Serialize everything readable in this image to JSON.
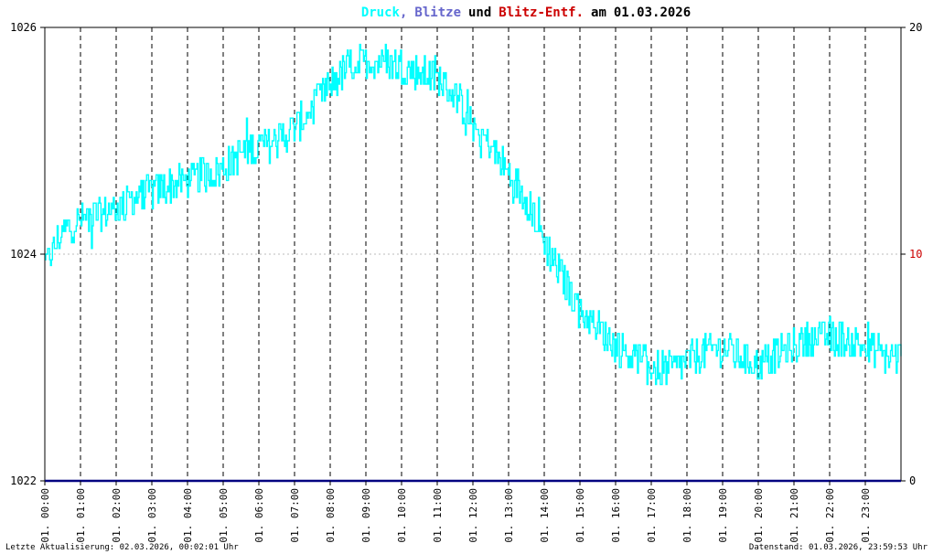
{
  "title": {
    "part1": "Druck",
    "sep1": ",",
    "part2": "Blitze",
    "word_und": "und",
    "part3": "Blitz-Entf.",
    "word_am": "am",
    "date": "01.03.2026"
  },
  "colors": {
    "pressure": "#00ffff",
    "blitze": "#6666cc",
    "blitz_entf": "#cc0000",
    "text": "#000000",
    "baseline": "#000080"
  },
  "footer": {
    "left": "Letzte Aktualisierung: 02.03.2026, 00:02:01 Uhr",
    "right": "Datenstand: 01.03.2026, 23:59:53 Uhr"
  },
  "chart_data": {
    "type": "line",
    "title": "Druck, Blitze und Blitz-Entf. am 01.03.2026",
    "ylim_left": [
      1022,
      1026
    ],
    "ylim_right": [
      0,
      20
    ],
    "left_ticks": [
      "1022",
      "1024",
      "1026"
    ],
    "right_ticks": [
      "0",
      "10",
      "20"
    ],
    "x_ticks": [
      "01. 00:00",
      "01. 01:00",
      "01. 02:00",
      "01. 03:00",
      "01. 04:00",
      "01. 05:00",
      "01. 06:00",
      "01. 07:00",
      "01. 08:00",
      "01. 09:00",
      "01. 10:00",
      "01. 11:00",
      "01. 12:00",
      "01. 13:00",
      "01. 14:00",
      "01. 15:00",
      "01. 16:00",
      "01. 17:00",
      "01. 18:00",
      "01. 19:00",
      "01. 20:00",
      "01. 21:00",
      "01. 22:00",
      "01. 23:00"
    ],
    "grid": "vertical dashed at each hour",
    "series": [
      {
        "name": "Druck",
        "axis": "left",
        "x_hours": [
          0,
          0.5,
          1,
          1.5,
          2,
          2.5,
          3,
          3.5,
          4,
          4.5,
          5,
          5.5,
          6,
          6.5,
          7,
          7.5,
          8,
          8.5,
          9,
          9.5,
          10,
          10.5,
          11,
          11.5,
          12,
          12.5,
          13,
          13.5,
          14,
          14.5,
          15,
          15.5,
          16,
          16.5,
          17,
          17.5,
          18,
          18.5,
          19,
          19.5,
          20,
          20.5,
          21,
          21.5,
          22,
          22.5,
          23,
          23.5,
          24
        ],
        "values": [
          1023.9,
          1024.2,
          1024.3,
          1024.35,
          1024.4,
          1024.5,
          1024.55,
          1024.6,
          1024.65,
          1024.7,
          1024.75,
          1024.9,
          1024.95,
          1025.0,
          1025.1,
          1025.3,
          1025.5,
          1025.65,
          1025.7,
          1025.7,
          1025.65,
          1025.6,
          1025.55,
          1025.4,
          1025.15,
          1024.95,
          1024.7,
          1024.5,
          1024.1,
          1023.8,
          1023.5,
          1023.35,
          1023.2,
          1023.1,
          1023.0,
          1022.98,
          1023.05,
          1023.15,
          1023.18,
          1023.1,
          1023.02,
          1023.12,
          1023.2,
          1023.25,
          1023.28,
          1023.25,
          1023.18,
          1023.1,
          1023.08
        ]
      },
      {
        "name": "Blitze",
        "axis": "right",
        "values": [
          0,
          0
        ]
      },
      {
        "name": "Blitz-Entf.",
        "axis": "right",
        "values": []
      }
    ]
  }
}
